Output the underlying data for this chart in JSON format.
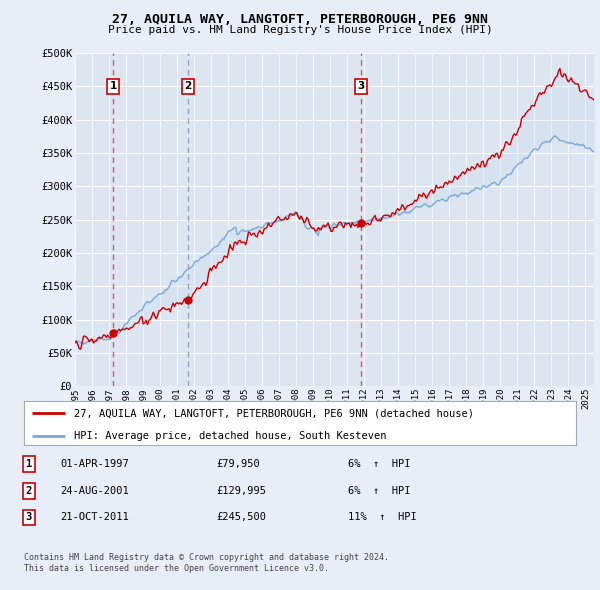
{
  "title": "27, AQUILA WAY, LANGTOFT, PETERBOROUGH, PE6 9NN",
  "subtitle": "Price paid vs. HM Land Registry's House Price Index (HPI)",
  "ylabel_ticks": [
    "£0",
    "£50K",
    "£100K",
    "£150K",
    "£200K",
    "£250K",
    "£300K",
    "£350K",
    "£400K",
    "£450K",
    "£500K"
  ],
  "ytick_values": [
    0,
    50000,
    100000,
    150000,
    200000,
    250000,
    300000,
    350000,
    400000,
    450000,
    500000
  ],
  "sale_points": [
    {
      "label": "1",
      "date": "01-APR-1997",
      "price": 79950,
      "x_year": 1997.25,
      "hpi_pct": "6%",
      "dash_color": "#dd4444"
    },
    {
      "label": "2",
      "date": "24-AUG-2001",
      "price": 129995,
      "x_year": 2001.64,
      "hpi_pct": "6%",
      "dash_color": "#8899bb"
    },
    {
      "label": "3",
      "date": "21-OCT-2011",
      "price": 245500,
      "x_year": 2011.8,
      "hpi_pct": "11%",
      "dash_color": "#dd4444"
    }
  ],
  "legend_line1": "27, AQUILA WAY, LANGTOFT, PETERBOROUGH, PE6 9NN (detached house)",
  "legend_line2": "HPI: Average price, detached house, South Kesteven",
  "footer1": "Contains HM Land Registry data © Crown copyright and database right 2024.",
  "footer2": "This data is licensed under the Open Government Licence v3.0.",
  "background_color": "#e8eef8",
  "plot_bg_color": "#dde5f0",
  "grid_color": "#ffffff",
  "hpi_color": "#7aaadd",
  "price_color": "#cc0000",
  "fill_color": "#c8daf0",
  "xmin": 1995,
  "xmax": 2025.5,
  "ymin": 0,
  "ymax": 500000
}
